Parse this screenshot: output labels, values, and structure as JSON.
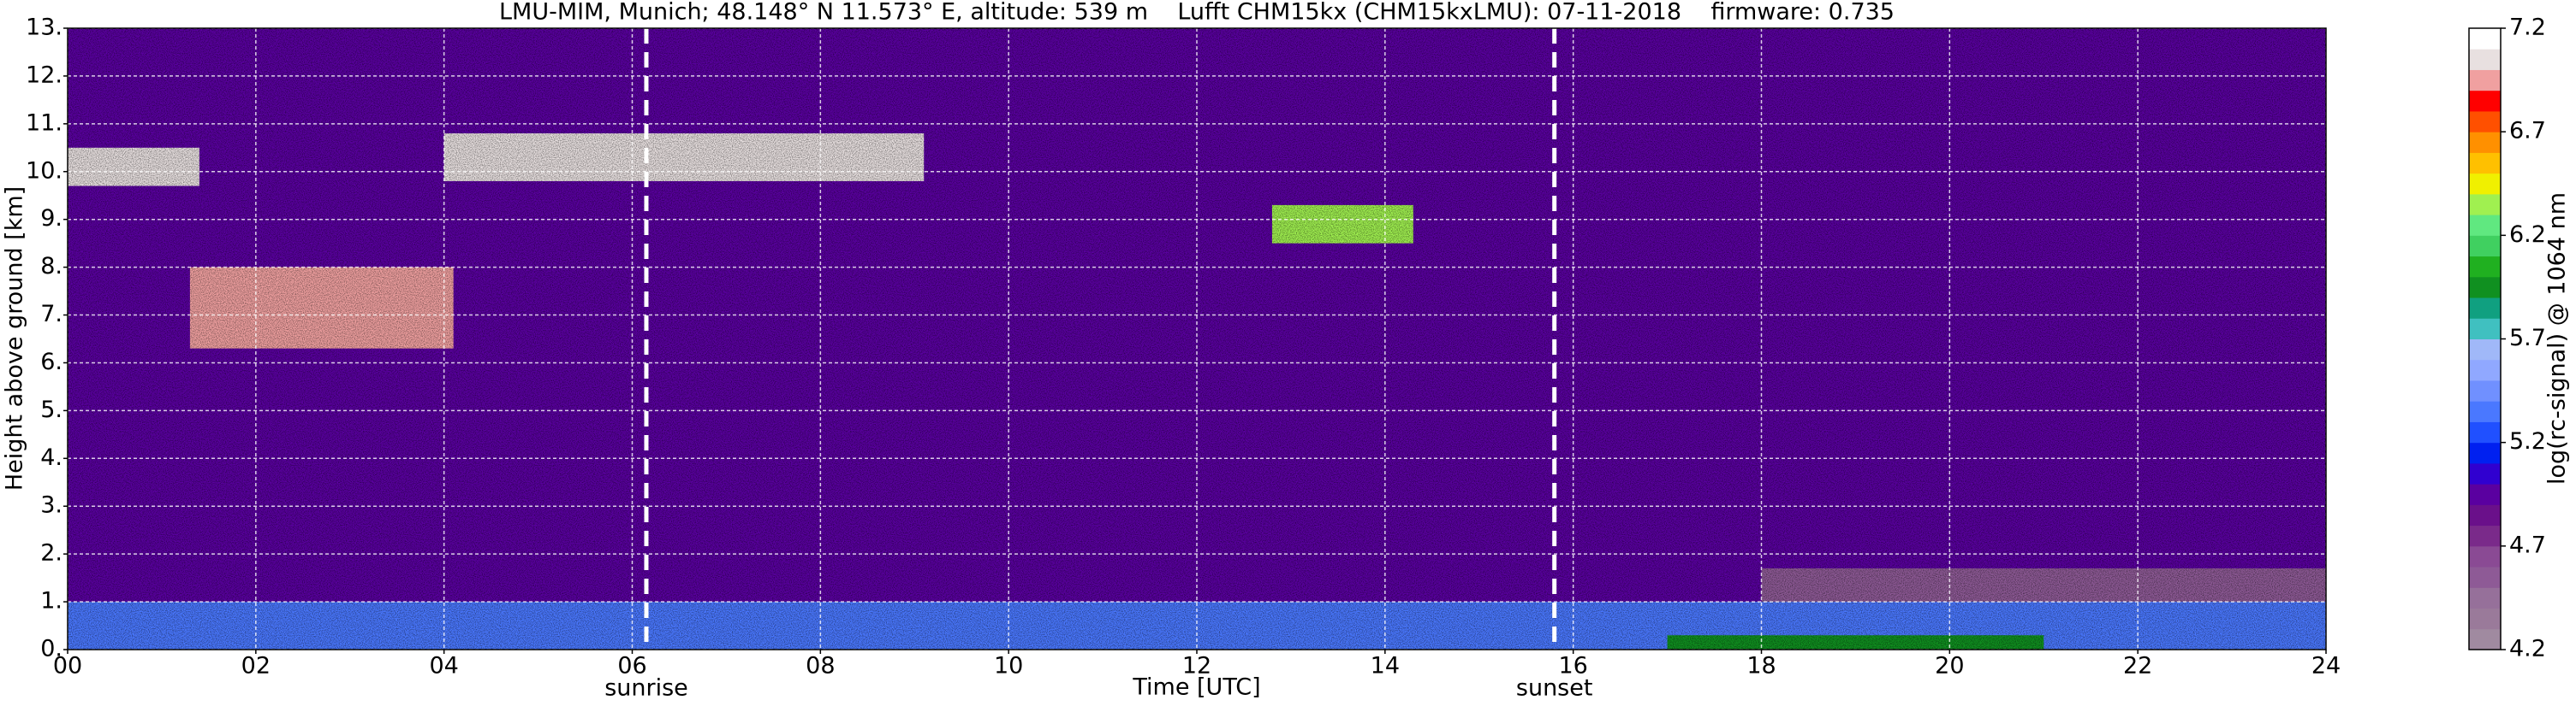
{
  "chart_data": {
    "type": "heatmap",
    "title": "LMU-MIM, Munich; 48.148° N 11.573° E, altitude: 539 m    Lufft CHM15kx (CHM15kxLMU): 07-11-2018    firmware: 0.735",
    "xlabel": "Time [UTC]",
    "ylabel": "Height above ground [km]",
    "xlim": [
      0,
      24
    ],
    "xticks": [
      {
        "value": 0,
        "label": "00"
      },
      {
        "value": 2,
        "label": "02"
      },
      {
        "value": 4,
        "label": "04"
      },
      {
        "value": 6,
        "label": "06"
      },
      {
        "value": 8,
        "label": "08"
      },
      10,
      12,
      14,
      16,
      18,
      20,
      22,
      24
    ],
    "ylim": [
      0,
      13
    ],
    "yticks": [
      {
        "value": 0,
        "label": "0."
      },
      {
        "value": 1,
        "label": "1."
      },
      {
        "value": 2,
        "label": "2."
      },
      {
        "value": 3,
        "label": "3."
      },
      {
        "value": 4,
        "label": "4."
      },
      {
        "value": 5,
        "label": "5."
      },
      {
        "value": 6,
        "label": "6."
      },
      {
        "value": 7,
        "label": "7."
      },
      {
        "value": 8,
        "label": "8."
      },
      {
        "value": 9,
        "label": "9."
      },
      {
        "value": 10,
        "label": "10."
      },
      {
        "value": 11,
        "label": "11."
      },
      {
        "value": 12,
        "label": "12."
      },
      {
        "value": 13,
        "label": "13."
      }
    ],
    "grid": true,
    "layers": [
      {
        "t0": 0,
        "t1": 24,
        "h0": 1,
        "h1": 13,
        "value": 4.9
      },
      {
        "t0": 0,
        "t1": 24,
        "h0": 0,
        "h1": 1,
        "value": 5.3
      },
      {
        "t0": 18,
        "t1": 24,
        "h0": 1,
        "h1": 1.7,
        "value": 4.5
      },
      {
        "t0": 17,
        "t1": 21,
        "h0": 0,
        "h1": 0.3,
        "value": 5.9
      },
      {
        "t0": 0,
        "t1": 1.4,
        "h0": 9.7,
        "h1": 10.5,
        "value": 7.0
      },
      {
        "t0": 1.3,
        "t1": 4.1,
        "h0": 6.3,
        "h1": 8.0,
        "value": 6.9
      },
      {
        "t0": 4.0,
        "t1": 9.1,
        "h0": 9.8,
        "h1": 10.8,
        "value": 7.0
      },
      {
        "t0": 12.8,
        "t1": 14.3,
        "h0": 8.5,
        "h1": 9.3,
        "value": 6.3
      }
    ],
    "annotations": [
      {
        "x": 6.15,
        "label": "sunrise"
      },
      {
        "x": 15.8,
        "label": "sunset"
      }
    ],
    "colorbar": {
      "label": "log(rc-signal) @ 1064 nm",
      "lim": [
        4.2,
        7.2
      ],
      "ticks": [
        4.2,
        4.7,
        5.2,
        5.7,
        6.2,
        6.7,
        7.2
      ],
      "colors": [
        "#a08aa0",
        "#9a7a9a",
        "#96709a",
        "#8e5a96",
        "#8a4a94",
        "#7a2a8a",
        "#6a108a",
        "#5a00a0",
        "#3000d0",
        "#0020f0",
        "#2050ff",
        "#4a78ff",
        "#7090ff",
        "#90a8ff",
        "#a0b8f8",
        "#40c0c0",
        "#10a080",
        "#109020",
        "#20b020",
        "#40d060",
        "#60e880",
        "#a0f050",
        "#f0f000",
        "#ffc000",
        "#ff9000",
        "#ff5000",
        "#ff0000",
        "#f0a0a0",
        "#e8e0e0",
        "#ffffff"
      ]
    }
  }
}
